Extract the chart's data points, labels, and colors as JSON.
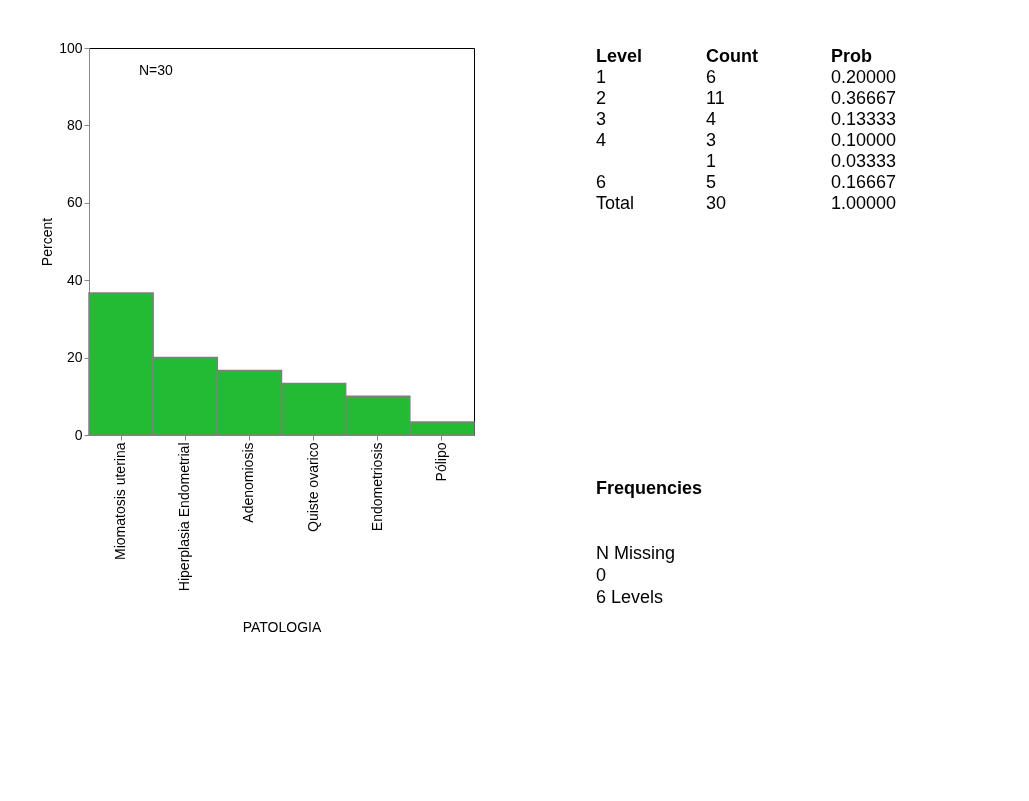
{
  "chart_data": [
    {
      "type": "bar",
      "xlabel": "PATOLOGIA",
      "ylabel": "Percent",
      "categories": [
        "Miomatosis uterina",
        "Hiperplasia Endometrial",
        "Adenomiosis",
        "Quiste ovarico",
        "Endometriosis",
        "Pólipo"
      ],
      "values": [
        36.667,
        20,
        16.667,
        13.333,
        10,
        3.333
      ],
      "color": "#22bb33",
      "ylim": [
        0,
        100
      ],
      "yticks": [
        0,
        20,
        40,
        60,
        80,
        100
      ],
      "grid": false,
      "annotations": [
        "N=30"
      ]
    },
    {
      "type": "other",
      "annotations": [
        "Level",
        "Count",
        "Prob",
        "1",
        "6",
        "0.20000",
        "2",
        "11",
        "0.36667",
        "3",
        "4",
        "0.13333",
        "4",
        "3",
        "0.10000",
        "1",
        "0.03333",
        "6",
        "5",
        "0.16667",
        "Total",
        "30",
        "1.00000",
        "Frequencies",
        "N Missing",
        "0",
        "6 Levels"
      ]
    }
  ]
}
